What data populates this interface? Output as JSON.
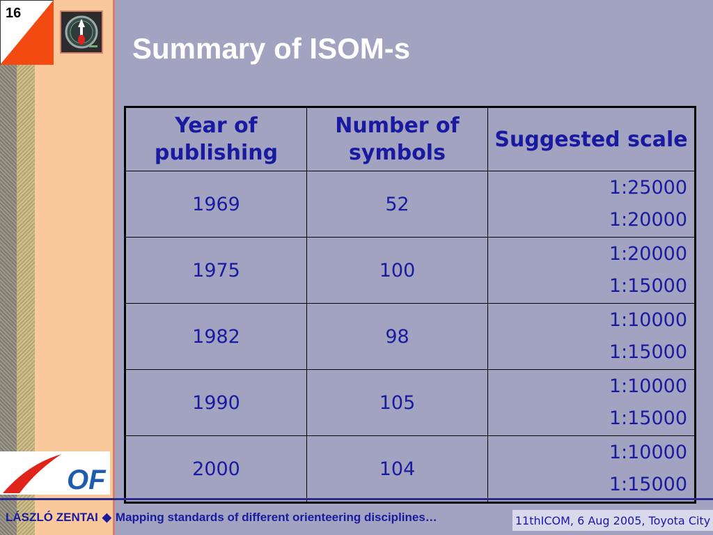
{
  "slide": {
    "number": "16",
    "title": "Summary of ISOM-s"
  },
  "table": {
    "headers": [
      "Year of publishing",
      "Number of symbols",
      "Suggested scale"
    ],
    "rows": [
      {
        "year": "1969",
        "symbols": "52",
        "scale1": "1:25000",
        "scale2": "1:20000"
      },
      {
        "year": "1975",
        "symbols": "100",
        "scale1": "1:20000",
        "scale2": "1:15000"
      },
      {
        "year": "1982",
        "symbols": "98",
        "scale1": "1:10000",
        "scale2": "1:15000"
      },
      {
        "year": "1990",
        "symbols": "105",
        "scale1": "1:10000",
        "scale2": "1:15000"
      },
      {
        "year": "2000",
        "symbols": "104",
        "scale1": "1:10000",
        "scale2": "1:15000"
      }
    ]
  },
  "logo": {
    "icon": "compass-icon",
    "org": "OF"
  },
  "footer": {
    "author": "LÁSZLÓ ZENTAI",
    "separator": "◆",
    "subject": "Mapping standards of different orienteering disciplines…",
    "event": "11thICOM, 6 Aug 2005, Toyota City"
  },
  "colors": {
    "background": "#a2a3c0",
    "text_blue": "#1a1aa0",
    "sidebar_peach": "#f9c99b",
    "flag_orange": "#f24a10"
  }
}
